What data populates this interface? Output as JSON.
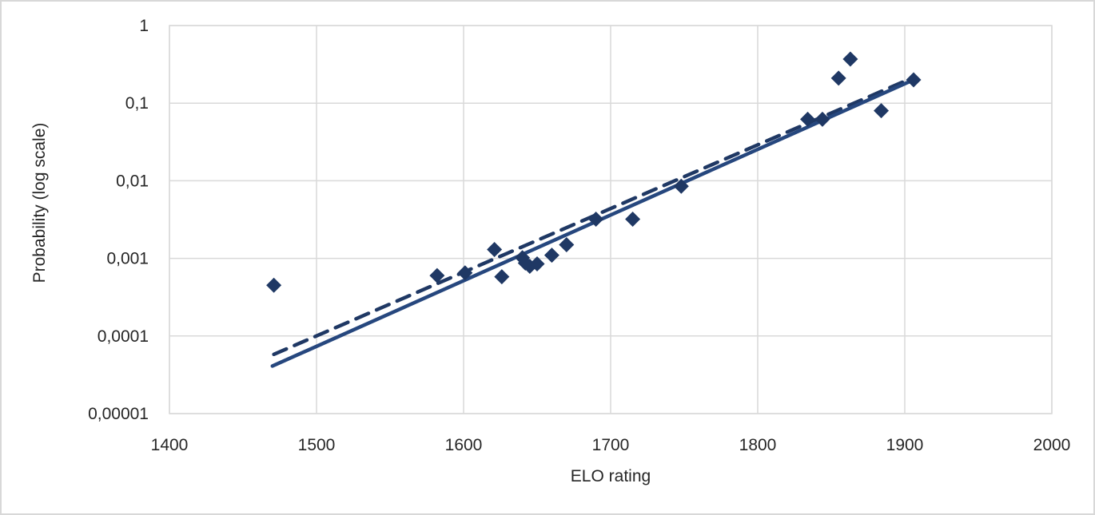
{
  "chart_data": {
    "type": "scatter",
    "title": "",
    "xlabel": "ELO rating",
    "ylabel": "Probability (log scale)",
    "x_range": [
      1400,
      2000
    ],
    "y_range": [
      1e-05,
      1
    ],
    "y_scale": "log",
    "grid": true,
    "legend": "none",
    "x_ticks": [
      {
        "value": 1400,
        "label": "1400"
      },
      {
        "value": 1500,
        "label": "1500"
      },
      {
        "value": 1600,
        "label": "1600"
      },
      {
        "value": 1700,
        "label": "1700"
      },
      {
        "value": 1800,
        "label": "1800"
      },
      {
        "value": 1900,
        "label": "1900"
      },
      {
        "value": 2000,
        "label": "2000"
      }
    ],
    "y_ticks": [
      {
        "value": 1,
        "label": "1"
      },
      {
        "value": 0.1,
        "label": "0,1"
      },
      {
        "value": 0.01,
        "label": "0,01"
      },
      {
        "value": 0.001,
        "label": "0,001"
      },
      {
        "value": 0.0001,
        "label": "0,0001"
      },
      {
        "value": 1e-05,
        "label": "0,00001"
      }
    ],
    "series": [
      {
        "name": "trendline-dashed",
        "type": "line",
        "style": "dashed",
        "color": "#1f3864",
        "points": [
          {
            "elo": 1471,
            "p": 5.8e-05
          },
          {
            "elo": 1906,
            "p": 0.215
          }
        ]
      },
      {
        "name": "trendline-solid",
        "type": "line",
        "style": "solid",
        "color": "#26477e",
        "points": [
          {
            "elo": 1470,
            "p": 4.1e-05
          },
          {
            "elo": 1906,
            "p": 0.2
          }
        ]
      },
      {
        "name": "observed-probabilities",
        "type": "scatter",
        "marker": "diamond",
        "color": "#1f3864",
        "points": [
          {
            "elo": 1471,
            "p": 0.00045
          },
          {
            "elo": 1582,
            "p": 0.0006
          },
          {
            "elo": 1601,
            "p": 0.00065
          },
          {
            "elo": 1621,
            "p": 0.0013
          },
          {
            "elo": 1626,
            "p": 0.00058
          },
          {
            "elo": 1640,
            "p": 0.00102
          },
          {
            "elo": 1642,
            "p": 0.00087
          },
          {
            "elo": 1645,
            "p": 0.00079
          },
          {
            "elo": 1650,
            "p": 0.00085
          },
          {
            "elo": 1660,
            "p": 0.0011
          },
          {
            "elo": 1670,
            "p": 0.0015
          },
          {
            "elo": 1690,
            "p": 0.0032
          },
          {
            "elo": 1715,
            "p": 0.0032
          },
          {
            "elo": 1748,
            "p": 0.0085
          },
          {
            "elo": 1834,
            "p": 0.062
          },
          {
            "elo": 1844,
            "p": 0.062
          },
          {
            "elo": 1855,
            "p": 0.21
          },
          {
            "elo": 1863,
            "p": 0.37
          },
          {
            "elo": 1884,
            "p": 0.08
          },
          {
            "elo": 1906,
            "p": 0.2
          }
        ]
      }
    ],
    "colors": {
      "point": "#1f3864",
      "trendline_solid": "#26477e",
      "trendline_dashed": "#1f3864",
      "grid": "#d9d9d9",
      "plot_border": "#d9d9d9",
      "frame_border": "#d8d8d8",
      "axis_text": "#262626"
    }
  }
}
